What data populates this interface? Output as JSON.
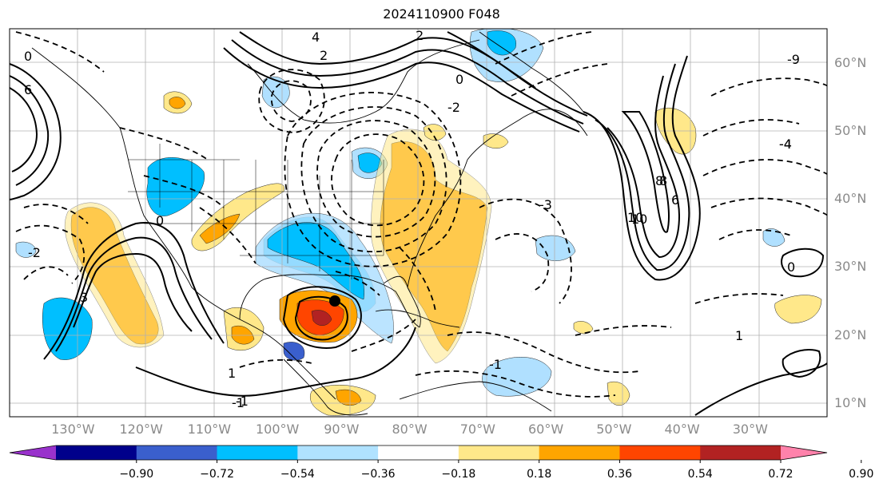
{
  "title": "2024110900 F048",
  "map": {
    "projection": "plate-carree",
    "extent": {
      "lon": [
        -140,
        -20
      ],
      "lat": [
        8,
        65
      ]
    },
    "longitude_labels": [
      {
        "value": -130,
        "label": "130°W"
      },
      {
        "value": -120,
        "label": "120°W"
      },
      {
        "value": -110,
        "label": "110°W"
      },
      {
        "value": -100,
        "label": "100°W"
      },
      {
        "value": -90,
        "label": "90°W"
      },
      {
        "value": -80,
        "label": "80°W"
      },
      {
        "value": -70,
        "label": "70°W"
      },
      {
        "value": -60,
        "label": "60°W"
      },
      {
        "value": -50,
        "label": "50°W"
      },
      {
        "value": -40,
        "label": "40°W"
      },
      {
        "value": -30,
        "label": "30°W"
      }
    ],
    "latitude_labels": [
      {
        "value": 60,
        "label": "60°N"
      },
      {
        "value": 50,
        "label": "50°N"
      },
      {
        "value": 40,
        "label": "40°N"
      },
      {
        "value": 30,
        "label": "30°N"
      },
      {
        "value": 20,
        "label": "20°N"
      },
      {
        "value": 10,
        "label": "10°N"
      }
    ],
    "contour_labels": [
      "0",
      "0",
      "2",
      "4",
      "6",
      "8",
      "10",
      "-1",
      "-2",
      "-4",
      "-3",
      "0",
      "3",
      "1",
      "1",
      "-1",
      "0",
      "-2",
      "2",
      "6",
      "8",
      "10",
      "-4",
      "-9",
      "-1"
    ],
    "shading_colors": {
      "strong_negative": "#1e22a8",
      "negative": "#00bfff",
      "weak_negative": "#b0e0ff",
      "weak_positive": "#ffe88a",
      "positive": "#ffa500",
      "strong_positive": "#ff4500",
      "extreme_positive": "#b22222"
    },
    "storm_marker": {
      "lon": -91,
      "lat": 25
    }
  },
  "colorbar": {
    "ticks": [
      "−0.90",
      "−0.72",
      "−0.54",
      "−0.36",
      "−0.18",
      "0.18",
      "0.36",
      "0.54",
      "0.72",
      "0.90"
    ],
    "colors": [
      "#9932cc",
      "#00008b",
      "#3a5fcd",
      "#00bfff",
      "#b0e2ff",
      "#ffffff",
      "#ffe88a",
      "#ffa500",
      "#ff4500",
      "#b22222",
      "#ff82ab"
    ]
  }
}
